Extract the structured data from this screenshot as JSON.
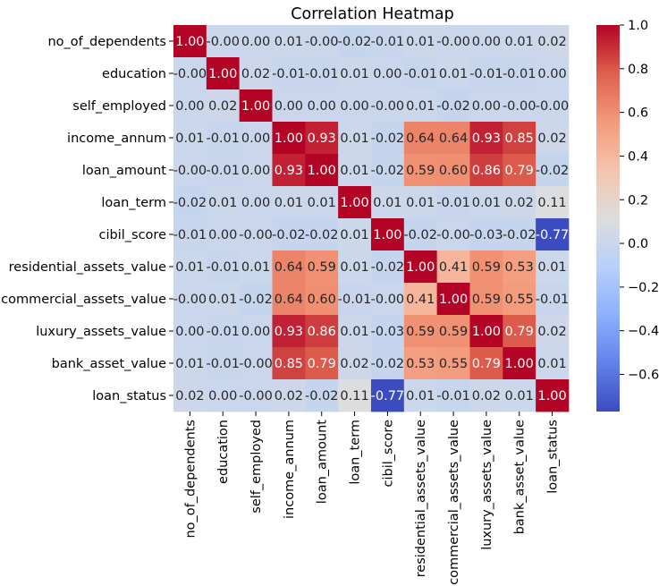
{
  "chart_data": {
    "type": "heatmap",
    "title": "Correlation Heatmap",
    "colormap": "coolwarm",
    "rows": [
      "no_of_dependents",
      "education",
      "self_employed",
      "income_annum",
      "loan_amount",
      "loan_term",
      "cibil_score",
      "residential_assets_value",
      "commercial_assets_value",
      "luxury_assets_value",
      "bank_asset_value",
      "loan_status"
    ],
    "columns": [
      "no_of_dependents",
      "education",
      "self_employed",
      "income_annum",
      "loan_amount",
      "loan_term",
      "cibil_score",
      "residential_assets_value",
      "commercial_assets_value",
      "luxury_assets_value",
      "bank_asset_value",
      "loan_status"
    ],
    "values": [
      [
        1.0,
        -0.0,
        0.0,
        0.01,
        -0.0,
        -0.02,
        -0.01,
        0.01,
        -0.0,
        0.0,
        0.01,
        0.02
      ],
      [
        -0.0,
        1.0,
        0.02,
        -0.01,
        -0.01,
        0.01,
        0.0,
        -0.01,
        0.01,
        -0.01,
        -0.01,
        0.0
      ],
      [
        0.0,
        0.02,
        1.0,
        0.0,
        0.0,
        0.0,
        -0.0,
        0.01,
        -0.02,
        0.0,
        -0.0,
        -0.0
      ],
      [
        0.01,
        -0.01,
        0.0,
        1.0,
        0.93,
        0.01,
        -0.02,
        0.64,
        0.64,
        0.93,
        0.85,
        0.02
      ],
      [
        -0.0,
        -0.01,
        0.0,
        0.93,
        1.0,
        0.01,
        -0.02,
        0.59,
        0.6,
        0.86,
        0.79,
        -0.02
      ],
      [
        -0.02,
        0.01,
        0.0,
        0.01,
        0.01,
        1.0,
        0.01,
        0.01,
        -0.01,
        0.01,
        0.02,
        0.11
      ],
      [
        -0.01,
        0.0,
        -0.0,
        -0.02,
        -0.02,
        0.01,
        1.0,
        -0.02,
        -0.0,
        -0.03,
        -0.02,
        -0.77
      ],
      [
        0.01,
        -0.01,
        0.01,
        0.64,
        0.59,
        0.01,
        -0.02,
        1.0,
        0.41,
        0.59,
        0.53,
        0.01
      ],
      [
        -0.0,
        0.01,
        -0.02,
        0.64,
        0.6,
        -0.01,
        -0.0,
        0.41,
        1.0,
        0.59,
        0.55,
        -0.01
      ],
      [
        0.0,
        -0.01,
        0.0,
        0.93,
        0.86,
        0.01,
        -0.03,
        0.59,
        0.59,
        1.0,
        0.79,
        0.02
      ],
      [
        0.01,
        -0.01,
        -0.0,
        0.85,
        0.79,
        0.02,
        -0.02,
        0.53,
        0.55,
        0.79,
        1.0,
        0.01
      ],
      [
        0.02,
        0.0,
        -0.0,
        0.02,
        -0.02,
        0.11,
        -0.77,
        0.01,
        -0.01,
        0.02,
        0.01,
        1.0
      ]
    ],
    "labels": [
      [
        "1.00",
        "-0.00",
        "0.00",
        "0.01",
        "-0.00",
        "-0.02",
        "-0.01",
        "0.01",
        "-0.00",
        "0.00",
        "0.01",
        "0.02"
      ],
      [
        "-0.00",
        "1.00",
        "0.02",
        "-0.01",
        "-0.01",
        "0.01",
        "0.00",
        "-0.01",
        "0.01",
        "-0.01",
        "-0.01",
        "0.00"
      ],
      [
        "0.00",
        "0.02",
        "1.00",
        "0.00",
        "0.00",
        "0.00",
        "-0.00",
        "0.01",
        "-0.02",
        "0.00",
        "-0.00",
        "-0.00"
      ],
      [
        "0.01",
        "-0.01",
        "0.00",
        "1.00",
        "0.93",
        "0.01",
        "-0.02",
        "0.64",
        "0.64",
        "0.93",
        "0.85",
        "0.02"
      ],
      [
        "-0.00",
        "-0.01",
        "0.00",
        "0.93",
        "1.00",
        "0.01",
        "-0.02",
        "0.59",
        "0.60",
        "0.86",
        "0.79",
        "-0.02"
      ],
      [
        "-0.02",
        "0.01",
        "0.00",
        "0.01",
        "0.01",
        "1.00",
        "0.01",
        "0.01",
        "-0.01",
        "0.01",
        "0.02",
        "0.11"
      ],
      [
        "-0.01",
        "0.00",
        "-0.00",
        "-0.02",
        "-0.02",
        "0.01",
        "1.00",
        "-0.02",
        "-0.00",
        "-0.03",
        "-0.02",
        "-0.77"
      ],
      [
        "0.01",
        "-0.01",
        "0.01",
        "0.64",
        "0.59",
        "0.01",
        "-0.02",
        "1.00",
        "0.41",
        "0.59",
        "0.53",
        "0.01"
      ],
      [
        "-0.00",
        "0.01",
        "-0.02",
        "0.64",
        "0.60",
        "-0.01",
        "-0.00",
        "0.41",
        "1.00",
        "0.59",
        "0.55",
        "-0.01"
      ],
      [
        "0.00",
        "-0.01",
        "0.00",
        "0.93",
        "0.86",
        "0.01",
        "-0.03",
        "0.59",
        "0.59",
        "1.00",
        "0.79",
        "0.02"
      ],
      [
        "0.01",
        "-0.01",
        "-0.00",
        "0.85",
        "0.79",
        "0.02",
        "-0.02",
        "0.53",
        "0.55",
        "0.79",
        "1.00",
        "0.01"
      ],
      [
        "0.02",
        "0.00",
        "-0.00",
        "0.02",
        "-0.02",
        "0.11",
        "-0.77",
        "0.01",
        "-0.01",
        "0.02",
        "0.01",
        "1.00"
      ]
    ],
    "colorbar": {
      "vmin": -0.77,
      "vmax": 1.0,
      "ticks": [
        1.0,
        0.8,
        0.6,
        0.4,
        0.2,
        0.0,
        -0.2,
        -0.4,
        -0.6
      ],
      "tick_labels": [
        "1.0",
        "0.8",
        "0.6",
        "0.4",
        "0.2",
        "0.0",
        "−0.2",
        "−0.4",
        "−0.6"
      ]
    }
  }
}
